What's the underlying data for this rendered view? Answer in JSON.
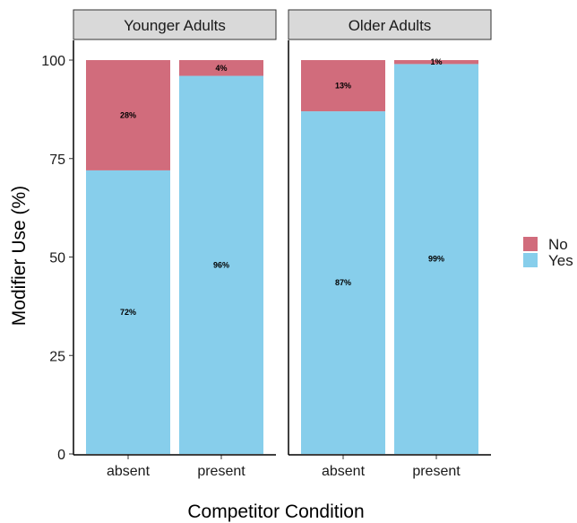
{
  "chart_data": {
    "type": "bar",
    "stacked": true,
    "percent": true,
    "facets": [
      "Younger Adults",
      "Older Adults"
    ],
    "categories": [
      "absent",
      "present"
    ],
    "series": [
      {
        "name": "Yes",
        "color": "#87CEEB",
        "values": {
          "Younger Adults": [
            72,
            96
          ],
          "Older Adults": [
            87,
            99
          ]
        }
      },
      {
        "name": "No",
        "color": "#D16C7C",
        "values": {
          "Younger Adults": [
            28,
            4
          ],
          "Older Adults": [
            13,
            1
          ]
        }
      }
    ],
    "data_labels": {
      "Yes": {
        "Younger Adults": [
          "72%",
          "96%"
        ],
        "Older Adults": [
          "87%",
          "99%"
        ]
      },
      "No": {
        "Younger Adults": [
          "28%",
          "4%"
        ],
        "Older Adults": [
          "13%",
          "1%"
        ]
      }
    },
    "xlabel": "Competitor Condition",
    "ylabel": "Modifier Use (%)",
    "ylim": [
      0,
      100
    ],
    "yticks": [
      0,
      25,
      50,
      75,
      100
    ],
    "legend": {
      "entries": [
        "No",
        "Yes"
      ],
      "position": "right"
    },
    "grid": false
  }
}
